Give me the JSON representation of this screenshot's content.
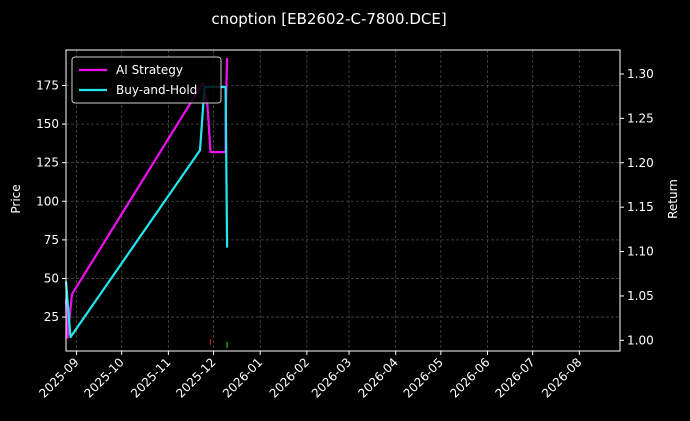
{
  "chart_data": {
    "type": "line",
    "title": "cnoption [EB2602-C-7800.DCE]",
    "xlabel": "",
    "ylabel": "Price",
    "y2label": "Return",
    "xlim": [
      "2025-08-25",
      "2026-08-28"
    ],
    "ylim": [
      3,
      198
    ],
    "y2lim": [
      0.988,
      1.327
    ],
    "x_ticks": [
      "2025-09",
      "2025-10",
      "2025-11",
      "2025-12",
      "2026-01",
      "2026-02",
      "2026-03",
      "2026-04",
      "2026-05",
      "2026-06",
      "2026-07",
      "2026-08"
    ],
    "y_ticks": [
      25,
      50,
      75,
      100,
      125,
      150,
      175
    ],
    "y2_ticks": [
      "1.00",
      "1.05",
      "1.10",
      "1.15",
      "1.20",
      "1.25",
      "1.30"
    ],
    "grid": true,
    "legend_position": "top-left",
    "background": "#000000",
    "series": [
      {
        "name": "AI Strategy",
        "axis": "right",
        "color": "#ee11ee",
        "points": [
          [
            "2025-08-25",
            1.046
          ],
          [
            "2025-08-26",
            1.003
          ],
          [
            "2025-08-29",
            1.052
          ],
          [
            "2025-11-24",
            1.29
          ],
          [
            "2025-11-27",
            1.264
          ],
          [
            "2025-11-29",
            1.212
          ],
          [
            "2025-12-09",
            1.212
          ],
          [
            "2025-12-09",
            1.25
          ],
          [
            "2025-12-10",
            1.318
          ]
        ]
      },
      {
        "name": "Buy-and-Hold",
        "axis": "left",
        "color": "#22e8ee",
        "points": [
          [
            "2025-08-25",
            48
          ],
          [
            "2025-08-28",
            12
          ],
          [
            "2025-11-22",
            133
          ],
          [
            "2025-11-25",
            174
          ],
          [
            "2025-12-09",
            174
          ],
          [
            "2025-12-10",
            70
          ]
        ]
      }
    ],
    "markers": [
      {
        "date": "2025-11-29",
        "value": 9,
        "color": "#cc2222"
      },
      {
        "date": "2025-12-10",
        "value": 7,
        "color": "#22cc22"
      }
    ]
  }
}
